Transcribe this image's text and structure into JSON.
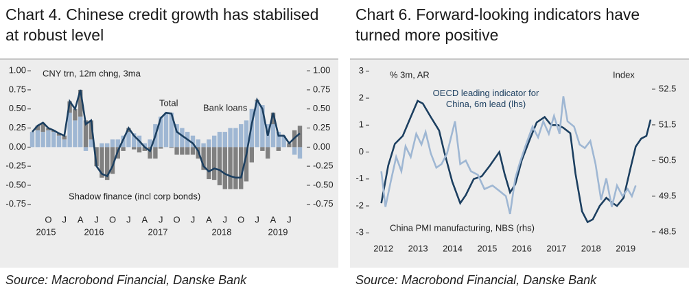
{
  "chart_data": [
    {
      "type": "bar",
      "stacked": true,
      "title": "Chart 4. Chinese credit growth has stabilised at robust level",
      "source": "Source: Macrobond Financial, Danske Bank",
      "annotations": [
        "CNY trn, 12m chng, 3ma"
      ],
      "categories": [
        null,
        null,
        null,
        "O",
        null,
        null,
        "J",
        null,
        null,
        "A",
        null,
        null,
        "J",
        null,
        null,
        "O",
        null,
        null,
        "J",
        null,
        null,
        "A",
        null,
        null,
        "J",
        null,
        null,
        "O",
        null,
        null,
        "J",
        null,
        null,
        "A",
        null,
        null,
        "J",
        null,
        null,
        "O",
        null,
        null,
        "J",
        null,
        null,
        "A",
        null,
        null,
        "J",
        null,
        null
      ],
      "year_labels": [
        "2015",
        "2016",
        "2017",
        "2018",
        "2019"
      ],
      "ylim": [
        -0.95,
        1.1
      ],
      "yticks": [
        {
          "value": 1,
          "label": "1.00"
        },
        0.75,
        {
          "value": 0.5,
          "label": "0.50"
        },
        0.25,
        {
          "value": 0,
          "label": "0.00"
        },
        -0.25,
        {
          "value": -0.5,
          "label": "-0.50"
        },
        -0.75
      ],
      "series": [
        {
          "name": "Bank loans",
          "type": "bar",
          "color": "#9fb7d3",
          "values": [
            0.2,
            0.22,
            0.2,
            0.22,
            0.2,
            0.15,
            0.1,
            0.45,
            0.35,
            0.4,
            -0.05,
            0.1,
            0.0,
            0.05,
            0.05,
            0.1,
            0.1,
            0.15,
            0.2,
            0.18,
            0.15,
            0.05,
            0.1,
            0.3,
            0.4,
            0.45,
            0.45,
            0.3,
            0.25,
            0.2,
            0.15,
            0.1,
            0.05,
            0.1,
            0.15,
            0.2,
            0.2,
            0.25,
            0.25,
            0.3,
            0.35,
            0.5,
            0.6,
            0.55,
            0.3,
            0.3,
            0.2,
            0.15,
            0.0,
            -0.1,
            -0.15
          ]
        },
        {
          "name": "Shadow finance (incl corp bonds)",
          "type": "bar",
          "color": "#808080",
          "values": [
            0.0,
            0.06,
            0.12,
            0.03,
            0.02,
            0.03,
            0.05,
            0.15,
            0.15,
            0.35,
            0.35,
            0.25,
            -0.25,
            -0.4,
            -0.43,
            -0.35,
            -0.15,
            -0.05,
            0.05,
            -0.03,
            -0.07,
            -0.05,
            -0.15,
            -0.15,
            -0.02,
            0.0,
            -0.01,
            -0.1,
            -0.1,
            -0.1,
            -0.1,
            -0.15,
            -0.3,
            -0.42,
            -0.43,
            -0.5,
            -0.55,
            -0.55,
            -0.55,
            -0.55,
            -0.45,
            -0.2,
            0.02,
            -0.05,
            -0.15,
            0.15,
            -0.05,
            0.0,
            0.05,
            0.22,
            0.28
          ]
        },
        {
          "name": "Total",
          "type": "line",
          "color": "#1c3f60",
          "values": [
            0.2,
            0.28,
            0.32,
            0.25,
            0.22,
            0.18,
            0.15,
            0.6,
            0.5,
            0.75,
            0.3,
            0.35,
            -0.25,
            -0.35,
            -0.38,
            -0.25,
            -0.05,
            0.1,
            0.25,
            0.15,
            0.08,
            0.0,
            -0.05,
            0.15,
            0.38,
            0.45,
            0.44,
            0.2,
            0.15,
            0.1,
            0.05,
            -0.05,
            -0.25,
            -0.32,
            -0.28,
            -0.3,
            -0.35,
            -0.38,
            -0.4,
            -0.4,
            -0.1,
            0.3,
            0.62,
            0.5,
            0.15,
            0.45,
            0.15,
            0.15,
            0.05,
            0.12,
            0.18
          ]
        }
      ]
    },
    {
      "type": "line",
      "title": "Chart 6. Forward-looking indicators have turned more positive",
      "source": "Source: Macrobond Financial, Danske Bank",
      "annotations": [
        "% 3m, AR",
        "Index"
      ],
      "xlim": [
        2012.13,
        2020.22
      ],
      "xticks": [
        {
          "value": 2012.5,
          "label": "2012"
        },
        {
          "value": 2013.5,
          "label": "2013"
        },
        {
          "value": 2014.5,
          "label": "2014"
        },
        {
          "value": 2015.5,
          "label": "2015"
        },
        {
          "value": 2016.5,
          "label": "2016"
        },
        {
          "value": 2017.5,
          "label": "2017"
        },
        {
          "value": 2018.5,
          "label": "2018"
        },
        {
          "value": 2019.5,
          "label": "2019"
        }
      ],
      "ylim": [
        -3.4,
        3.3
      ],
      "yticks": [
        3,
        2,
        1,
        0,
        -1,
        -2,
        -3
      ],
      "y2lim": [
        48.17,
        53.23
      ],
      "y2ticks": [
        52.5,
        51.5,
        50.5,
        49.5,
        48.5
      ],
      "series": [
        {
          "name": "OECD leading indicator for China, 6m lead (lhs)",
          "color": "#1c3f60",
          "x": [
            2012.44,
            2012.64,
            2012.83,
            2013.06,
            2013.29,
            2013.49,
            2013.64,
            2013.87,
            2014.11,
            2014.26,
            2014.49,
            2014.72,
            2014.88,
            2015.11,
            2015.34,
            2015.58,
            2015.85,
            2016.0,
            2016.16,
            2016.31,
            2016.5,
            2016.74,
            2016.93,
            2017.16,
            2017.35,
            2017.55,
            2017.7,
            2017.9,
            2018.05,
            2018.24,
            2018.4,
            2018.55,
            2018.75,
            2018.94,
            2019.13,
            2019.25,
            2019.44,
            2019.64,
            2019.79,
            2019.95,
            2020.1,
            2020.22
          ],
          "values": [
            -1.9,
            -0.5,
            0.3,
            0.6,
            1.3,
            1.9,
            1.8,
            1.3,
            0.8,
            0.0,
            -1.1,
            -1.9,
            -1.6,
            -1.0,
            -0.9,
            -0.5,
            0.0,
            -0.8,
            -1.5,
            -1.2,
            -0.3,
            0.5,
            1.1,
            1.3,
            1.0,
            1.0,
            0.9,
            0.7,
            -0.8,
            -2.2,
            -2.6,
            -2.5,
            -2.0,
            -1.7,
            -1.9,
            -2.0,
            -1.7,
            -0.6,
            0.2,
            0.5,
            0.6,
            1.2
          ]
        },
        {
          "name": "China PMI manufacturing, NBS (rhs)",
          "color": "#9fb7d3",
          "axis": "y2",
          "x": [
            2012.44,
            2012.56,
            2012.71,
            2012.87,
            2013.02,
            2013.14,
            2013.29,
            2013.45,
            2013.6,
            2013.72,
            2013.87,
            2014.03,
            2014.18,
            2014.34,
            2014.57,
            2014.72,
            2014.88,
            2015.03,
            2015.23,
            2015.42,
            2015.65,
            2015.85,
            2016.04,
            2016.16,
            2016.31,
            2016.43,
            2016.62,
            2016.81,
            2016.97,
            2017.12,
            2017.28,
            2017.43,
            2017.59,
            2017.7,
            2017.82,
            2018.01,
            2018.17,
            2018.32,
            2018.48,
            2018.63,
            2018.79,
            2018.94,
            2019.1,
            2019.25,
            2019.41,
            2019.56,
            2019.68,
            2019.79
          ],
          "values": [
            50.2,
            49.2,
            49.9,
            50.6,
            50.2,
            50.9,
            50.6,
            51.25,
            50.95,
            51.3,
            50.7,
            50.3,
            50.4,
            50.7,
            51.6,
            50.4,
            50.5,
            50.2,
            50.1,
            49.7,
            49.8,
            49.65,
            49.5,
            49.0,
            50.0,
            50.4,
            50.95,
            51.45,
            51.15,
            51.6,
            51.25,
            51.75,
            51.25,
            52.3,
            51.6,
            51.45,
            50.95,
            50.85,
            51.05,
            50.4,
            49.4,
            50.0,
            49.2,
            49.8,
            49.5,
            49.7,
            49.5,
            49.8
          ]
        }
      ]
    }
  ]
}
